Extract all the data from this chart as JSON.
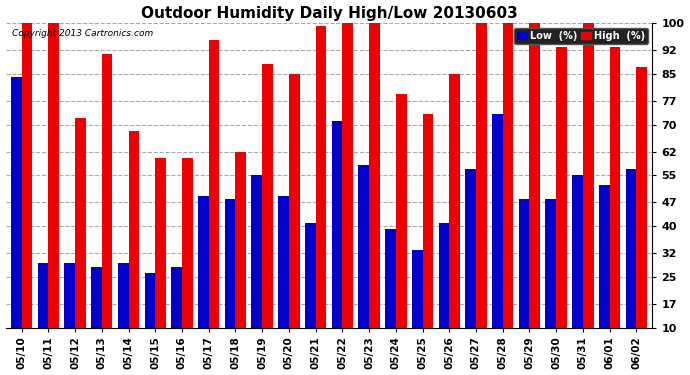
{
  "title": "Outdoor Humidity Daily High/Low 20130603",
  "copyright": "Copyright 2013 Cartronics.com",
  "dates": [
    "05/10",
    "05/11",
    "05/12",
    "05/13",
    "05/14",
    "05/15",
    "05/16",
    "05/17",
    "05/18",
    "05/19",
    "05/20",
    "05/21",
    "05/22",
    "05/23",
    "05/24",
    "05/25",
    "05/26",
    "05/27",
    "05/28",
    "05/29",
    "05/30",
    "05/31",
    "06/01",
    "06/02"
  ],
  "high": [
    100,
    100,
    72,
    91,
    68,
    60,
    60,
    95,
    62,
    88,
    85,
    99,
    100,
    100,
    79,
    73,
    85,
    100,
    100,
    100,
    93,
    100,
    93,
    87
  ],
  "low": [
    84,
    29,
    29,
    28,
    29,
    26,
    28,
    49,
    48,
    55,
    49,
    41,
    71,
    58,
    39,
    33,
    41,
    57,
    73,
    48,
    48,
    55,
    52,
    57
  ],
  "bg_color": "#ffffff",
  "grid_color": "#aaaaaa",
  "high_color": "#ee0000",
  "low_color": "#0000cc",
  "yticks": [
    10,
    17,
    25,
    32,
    40,
    47,
    55,
    62,
    70,
    77,
    85,
    92,
    100
  ],
  "ymin": 10,
  "ymax": 100,
  "legend_low_label": "Low  (%)",
  "legend_high_label": "High  (%)"
}
